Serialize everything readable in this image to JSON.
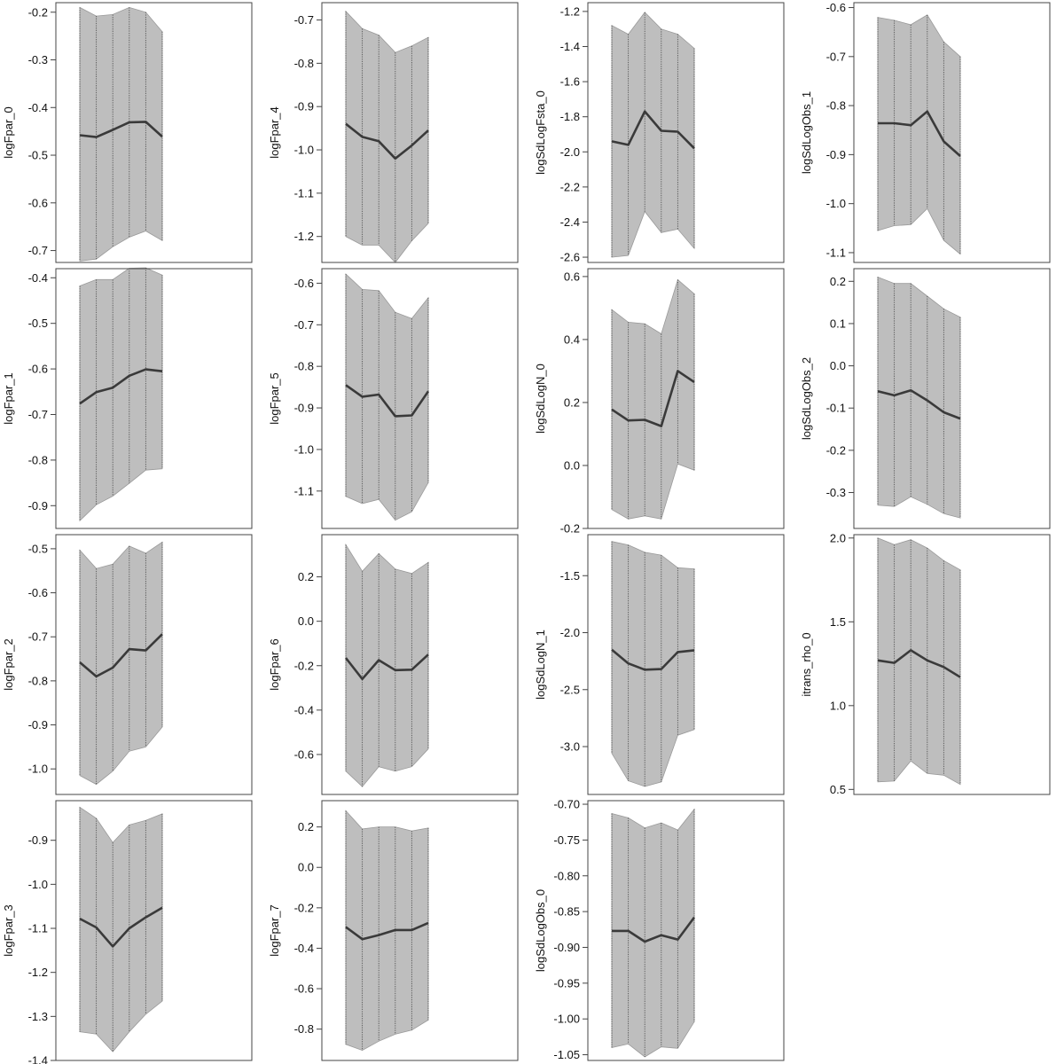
{
  "style": {
    "band_fill": "#bebebe",
    "band_edge": "#9a9a9a",
    "line_color": "#3a3a3a",
    "guide_color": "#555555",
    "frame_color": "#444444"
  },
  "chart_data": [
    {
      "type": "area",
      "ylabel": "logFpar_0",
      "yticks": [
        -0.2,
        -0.3,
        -0.4,
        -0.5,
        -0.6,
        -0.7
      ],
      "tick_labels": [
        "-0.2",
        "-0.3",
        "-0.4",
        "-0.5",
        "-0.6",
        "-0.7"
      ],
      "ylim": [
        -0.725,
        -0.18
      ],
      "x": [
        1,
        2,
        3,
        4,
        5,
        6
      ],
      "mean": [
        -0.458,
        -0.462,
        -0.447,
        -0.431,
        -0.43,
        -0.461
      ],
      "upper": [
        -0.19,
        -0.208,
        -0.205,
        -0.19,
        -0.2,
        -0.241
      ],
      "lower": [
        -0.722,
        -0.718,
        -0.692,
        -0.672,
        -0.659,
        -0.679
      ]
    },
    {
      "type": "area",
      "ylabel": "logFpar_4",
      "yticks": [
        -0.7,
        -0.8,
        -0.9,
        -1.0,
        -1.1,
        -1.2
      ],
      "tick_labels": [
        "-0.7",
        "-0.8",
        "-0.9",
        "-1.0",
        "-1.1",
        "-1.2"
      ],
      "ylim": [
        -1.26,
        -0.66
      ],
      "x": [
        1,
        2,
        3,
        4,
        5,
        6
      ],
      "mean": [
        -0.94,
        -0.97,
        -0.98,
        -1.02,
        -0.99,
        -0.955
      ],
      "upper": [
        -0.68,
        -0.72,
        -0.735,
        -0.775,
        -0.76,
        -0.74
      ],
      "lower": [
        -1.2,
        -1.22,
        -1.22,
        -1.26,
        -1.21,
        -1.17
      ]
    },
    {
      "type": "area",
      "ylabel": "logSdLogFsta_0",
      "yticks": [
        -1.2,
        -1.4,
        -1.6,
        -1.8,
        -2.0,
        -2.2,
        -2.4,
        -2.6
      ],
      "tick_labels": [
        "-1.2",
        "-1.4",
        "-1.6",
        "-1.8",
        "-2.0",
        "-2.2",
        "-2.4",
        "-2.6"
      ],
      "ylim": [
        -2.63,
        -1.15
      ],
      "x": [
        1,
        2,
        3,
        4,
        5,
        6
      ],
      "mean": [
        -1.94,
        -1.96,
        -1.77,
        -1.88,
        -1.885,
        -1.98
      ],
      "upper": [
        -1.28,
        -1.33,
        -1.205,
        -1.3,
        -1.33,
        -1.41
      ],
      "lower": [
        -2.6,
        -2.59,
        -2.34,
        -2.46,
        -2.44,
        -2.55
      ]
    },
    {
      "type": "area",
      "ylabel": "logSdLogObs_1",
      "yticks": [
        -0.6,
        -0.7,
        -0.8,
        -0.9,
        -1.0,
        -1.1
      ],
      "tick_labels": [
        "-0.6",
        "-0.7",
        "-0.8",
        "-0.9",
        "-1.0",
        "-1.1"
      ],
      "ylim": [
        -1.12,
        -0.59
      ],
      "x": [
        1,
        2,
        3,
        4,
        5,
        6
      ],
      "mean": [
        -0.836,
        -0.836,
        -0.84,
        -0.812,
        -0.873,
        -0.903
      ],
      "upper": [
        -0.62,
        -0.626,
        -0.635,
        -0.615,
        -0.67,
        -0.7
      ],
      "lower": [
        -1.055,
        -1.045,
        -1.043,
        -1.01,
        -1.075,
        -1.103
      ]
    },
    {
      "type": "area",
      "ylabel": "logFpar_1",
      "yticks": [
        -0.4,
        -0.5,
        -0.6,
        -0.7,
        -0.8,
        -0.9
      ],
      "tick_labels": [
        "-0.4",
        "-0.5",
        "-0.6",
        "-0.7",
        "-0.8",
        "-0.9"
      ],
      "ylim": [
        -0.95,
        -0.38
      ],
      "x": [
        1,
        2,
        3,
        4,
        5,
        6
      ],
      "mean": [
        -0.676,
        -0.651,
        -0.641,
        -0.615,
        -0.601,
        -0.605
      ],
      "upper": [
        -0.418,
        -0.404,
        -0.404,
        -0.379,
        -0.378,
        -0.394
      ],
      "lower": [
        -0.933,
        -0.898,
        -0.879,
        -0.851,
        -0.822,
        -0.819
      ]
    },
    {
      "type": "area",
      "ylabel": "logFpar_5",
      "yticks": [
        -0.6,
        -0.7,
        -0.8,
        -0.9,
        -1.0,
        -1.1
      ],
      "tick_labels": [
        "-0.6",
        "-0.7",
        "-0.8",
        "-0.9",
        "-1.0",
        "-1.1"
      ],
      "ylim": [
        -1.19,
        -0.565
      ],
      "x": [
        1,
        2,
        3,
        4,
        5,
        6
      ],
      "mean": [
        -0.845,
        -0.873,
        -0.868,
        -0.92,
        -0.918,
        -0.86
      ],
      "upper": [
        -0.578,
        -0.615,
        -0.618,
        -0.67,
        -0.685,
        -0.635
      ],
      "lower": [
        -1.113,
        -1.13,
        -1.12,
        -1.17,
        -1.15,
        -1.08
      ]
    },
    {
      "type": "area",
      "ylabel": "logSdLogN_0",
      "yticks": [
        0.6,
        0.4,
        0.2,
        0.0,
        -0.2
      ],
      "tick_labels": [
        "0.6",
        "0.4",
        "0.2",
        "0.0",
        "-0.2"
      ],
      "ylim": [
        -0.2,
        0.625
      ],
      "x": [
        1,
        2,
        3,
        4,
        5,
        6
      ],
      "mean": [
        0.178,
        0.143,
        0.145,
        0.125,
        0.3,
        0.265
      ],
      "upper": [
        0.495,
        0.455,
        0.45,
        0.418,
        0.59,
        0.545
      ],
      "lower": [
        -0.14,
        -0.17,
        -0.16,
        -0.17,
        0.005,
        -0.015
      ]
    },
    {
      "type": "area",
      "ylabel": "logSdLogObs_2",
      "yticks": [
        0.2,
        0.1,
        0.0,
        -0.1,
        -0.2,
        -0.3
      ],
      "tick_labels": [
        "0.2",
        "0.1",
        "0.0",
        "-0.1",
        "-0.2",
        "-0.3"
      ],
      "ylim": [
        -0.385,
        0.23
      ],
      "x": [
        1,
        2,
        3,
        4,
        5,
        6
      ],
      "mean": [
        -0.06,
        -0.07,
        -0.058,
        -0.082,
        -0.11,
        -0.125
      ],
      "upper": [
        0.21,
        0.195,
        0.195,
        0.165,
        0.135,
        0.115
      ],
      "lower": [
        -0.33,
        -0.333,
        -0.31,
        -0.328,
        -0.35,
        -0.36
      ]
    },
    {
      "type": "area",
      "ylabel": "logFpar_2",
      "yticks": [
        -0.5,
        -0.6,
        -0.7,
        -0.8,
        -0.9,
        -1.0
      ],
      "tick_labels": [
        "-0.5",
        "-0.6",
        "-0.7",
        "-0.8",
        "-0.9",
        "-1.0"
      ],
      "ylim": [
        -1.058,
        -0.468
      ],
      "x": [
        1,
        2,
        3,
        4,
        5,
        6
      ],
      "mean": [
        -0.758,
        -0.79,
        -0.77,
        -0.728,
        -0.731,
        -0.694
      ],
      "upper": [
        -0.503,
        -0.545,
        -0.535,
        -0.494,
        -0.51,
        -0.485
      ],
      "lower": [
        -1.015,
        -1.035,
        -1.005,
        -0.96,
        -0.95,
        -0.905
      ]
    },
    {
      "type": "area",
      "ylabel": "logFpar_6",
      "yticks": [
        0.2,
        0.0,
        -0.2,
        -0.4,
        -0.6
      ],
      "tick_labels": [
        "0.2",
        "0.0",
        "-0.2",
        "-0.4",
        "-0.6"
      ],
      "ylim": [
        -0.78,
        0.39
      ],
      "x": [
        1,
        2,
        3,
        4,
        5,
        6
      ],
      "mean": [
        -0.165,
        -0.26,
        -0.175,
        -0.22,
        -0.218,
        -0.15
      ],
      "upper": [
        0.345,
        0.225,
        0.305,
        0.235,
        0.215,
        0.265
      ],
      "lower": [
        -0.675,
        -0.745,
        -0.655,
        -0.675,
        -0.655,
        -0.575
      ]
    },
    {
      "type": "area",
      "ylabel": "logSdLogN_1",
      "yticks": [
        -1.5,
        -2.0,
        -2.5,
        -3.0
      ],
      "tick_labels": [
        "-1.5",
        "-2.0",
        "-2.5",
        "-3.0"
      ],
      "ylim": [
        -3.42,
        -1.14
      ],
      "x": [
        1,
        2,
        3,
        4,
        5,
        6
      ],
      "mean": [
        -2.15,
        -2.27,
        -2.325,
        -2.32,
        -2.17,
        -2.155
      ],
      "upper": [
        -1.2,
        -1.23,
        -1.295,
        -1.32,
        -1.43,
        -1.44
      ],
      "lower": [
        -3.06,
        -3.3,
        -3.35,
        -3.31,
        -2.9,
        -2.85
      ]
    },
    {
      "type": "area",
      "ylabel": "itrans_rho_0",
      "yticks": [
        2.0,
        1.5,
        1.0,
        0.5
      ],
      "tick_labels": [
        "2.0",
        "1.5",
        "1.0",
        "0.5"
      ],
      "ylim": [
        0.47,
        2.02
      ],
      "x": [
        1,
        2,
        3,
        4,
        5,
        6
      ],
      "mean": [
        1.27,
        1.255,
        1.33,
        1.27,
        1.23,
        1.17
      ],
      "upper": [
        2.0,
        1.96,
        1.99,
        1.94,
        1.865,
        1.81
      ],
      "lower": [
        0.545,
        0.55,
        0.67,
        0.595,
        0.585,
        0.53
      ]
    },
    {
      "type": "area",
      "ylabel": "logFpar_3",
      "yticks": [
        -0.9,
        -1.0,
        -1.1,
        -1.2,
        -1.3,
        -1.4
      ],
      "tick_labels": [
        "-0.9",
        "-1.0",
        "-1.1",
        "-1.2",
        "-1.3",
        "-1.4"
      ],
      "ylim": [
        -1.4,
        -0.81
      ],
      "x": [
        1,
        2,
        3,
        4,
        5,
        6
      ],
      "mean": [
        -1.078,
        -1.098,
        -1.141,
        -1.1,
        -1.075,
        -1.053
      ],
      "upper": [
        -0.825,
        -0.85,
        -0.905,
        -0.865,
        -0.855,
        -0.84
      ],
      "lower": [
        -1.335,
        -1.34,
        -1.38,
        -1.335,
        -1.295,
        -1.265
      ]
    },
    {
      "type": "area",
      "ylabel": "logFpar_7",
      "yticks": [
        0.2,
        0.0,
        -0.2,
        -0.4,
        -0.6,
        -0.8
      ],
      "tick_labels": [
        "0.2",
        "0.0",
        "-0.2",
        "-0.4",
        "-0.6",
        "-0.8"
      ],
      "ylim": [
        -0.955,
        0.33
      ],
      "x": [
        1,
        2,
        3,
        4,
        5,
        6
      ],
      "mean": [
        -0.295,
        -0.355,
        -0.335,
        -0.31,
        -0.31,
        -0.275
      ],
      "upper": [
        0.28,
        0.19,
        0.2,
        0.2,
        0.18,
        0.195
      ],
      "lower": [
        -0.875,
        -0.905,
        -0.86,
        -0.825,
        -0.805,
        -0.755
      ]
    },
    {
      "type": "area",
      "ylabel": "logSdLogObs_0",
      "yticks": [
        -0.7,
        -0.75,
        -0.8,
        -0.85,
        -0.9,
        -0.95,
        -1.0,
        -1.05
      ],
      "tick_labels": [
        "-0.70",
        "-0.75",
        "-0.80",
        "-0.85",
        "-0.90",
        "-0.95",
        "-1.00",
        "-1.05"
      ],
      "ylim": [
        -1.058,
        -0.695
      ],
      "x": [
        1,
        2,
        3,
        4,
        5,
        6
      ],
      "mean": [
        -0.877,
        -0.877,
        -0.892,
        -0.883,
        -0.889,
        -0.858
      ],
      "upper": [
        -0.713,
        -0.719,
        -0.733,
        -0.726,
        -0.736,
        -0.707
      ],
      "lower": [
        -1.04,
        -1.035,
        -1.053,
        -1.039,
        -1.041,
        -1.004
      ]
    }
  ]
}
